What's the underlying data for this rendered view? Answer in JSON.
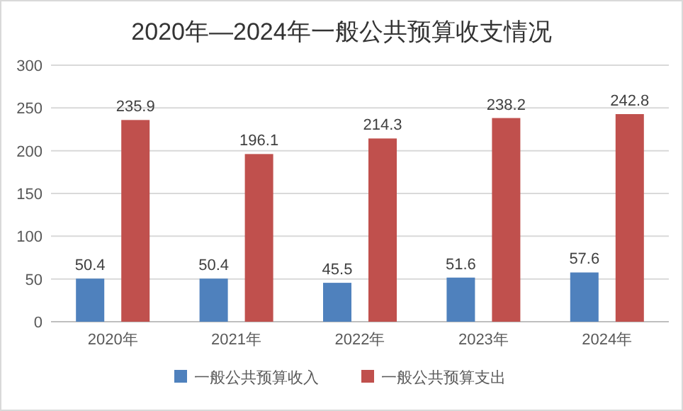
{
  "chart_data": {
    "type": "bar",
    "title": "2020年—2024年一般公共预算收支情况",
    "categories": [
      "2020年",
      "2021年",
      "2022年",
      "2023年",
      "2024年"
    ],
    "series": [
      {
        "name": "一般公共预算收入",
        "color": "#4f81bd",
        "values": [
          50.4,
          50.4,
          45.5,
          51.6,
          57.6
        ]
      },
      {
        "name": "一般公共预算支出",
        "color": "#c0504d",
        "values": [
          235.9,
          196.1,
          214.3,
          238.2,
          242.8
        ]
      }
    ],
    "ylim": [
      0,
      300
    ],
    "yticks": [
      0,
      50,
      100,
      150,
      200,
      250,
      300
    ],
    "grid": "y",
    "legend": "bottom",
    "data_labels": true
  }
}
